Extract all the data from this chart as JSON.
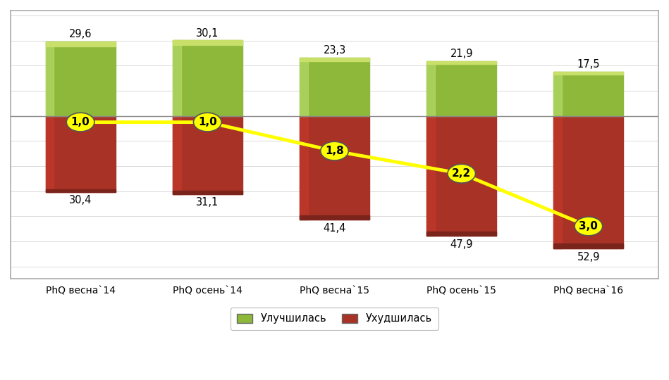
{
  "categories": [
    "PhQ весна`14",
    "PhQ осень`14",
    "PhQ весна`15",
    "PhQ осень`15",
    "PhQ весна`16"
  ],
  "green_values": [
    29.6,
    30.1,
    23.3,
    21.9,
    17.5
  ],
  "red_values": [
    30.4,
    31.1,
    41.4,
    47.9,
    52.9
  ],
  "ratio_values": [
    1.0,
    1.0,
    1.8,
    2.2,
    3.0
  ],
  "ratio_y_pos": [
    -2.5,
    -2.5,
    -14.0,
    -23.0,
    -44.0
  ],
  "green_color": "#8DB83A",
  "red_color": "#A93226",
  "green_gradient_color": "#B5D96A",
  "red_gradient_color": "#C0392B",
  "line_color": "#FFFF00",
  "marker_fill": "#FFFF00",
  "marker_edge": "#555555",
  "background_color": "#FFFFFF",
  "frame_color": "#AAAAAA",
  "zero_line_color": "#888888",
  "text_color": "#000000",
  "bar_width": 0.55,
  "ylim_bottom": -65,
  "ylim_top": 42,
  "xlim_left": -0.55,
  "xlim_right": 4.55,
  "legend_green": "Улучшилась",
  "legend_red": "Ухудшилась",
  "label_fontsize": 10.5,
  "tick_fontsize": 10.5
}
